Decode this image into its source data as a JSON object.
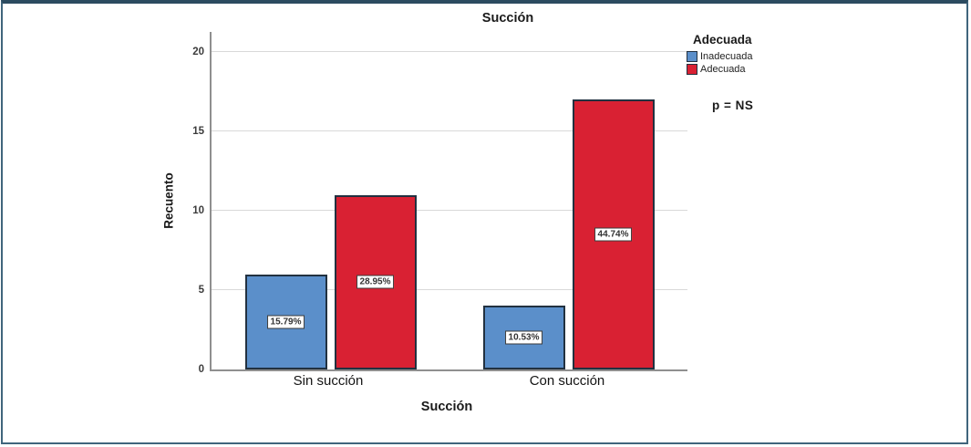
{
  "chart_data": {
    "type": "bar",
    "title": "Succión",
    "xlabel": "Succión",
    "ylabel": "Recuento",
    "categories": [
      "Sin succión",
      "Con succión"
    ],
    "series": [
      {
        "name": "Inadecuada",
        "color": "#5b8fca",
        "values": [
          6,
          4
        ],
        "percent_labels": [
          "15.79%",
          "10.53%"
        ]
      },
      {
        "name": "Adecuada",
        "color": "#d92133",
        "values": [
          11,
          17
        ],
        "percent_labels": [
          "28.95%",
          "44.74%"
        ]
      }
    ],
    "ylim": [
      0,
      20
    ],
    "yticks": [
      0,
      5,
      10,
      15,
      20
    ],
    "grid": true,
    "legend_title": "Adecuada",
    "legend_position": "right",
    "annotation": "p = NS"
  }
}
